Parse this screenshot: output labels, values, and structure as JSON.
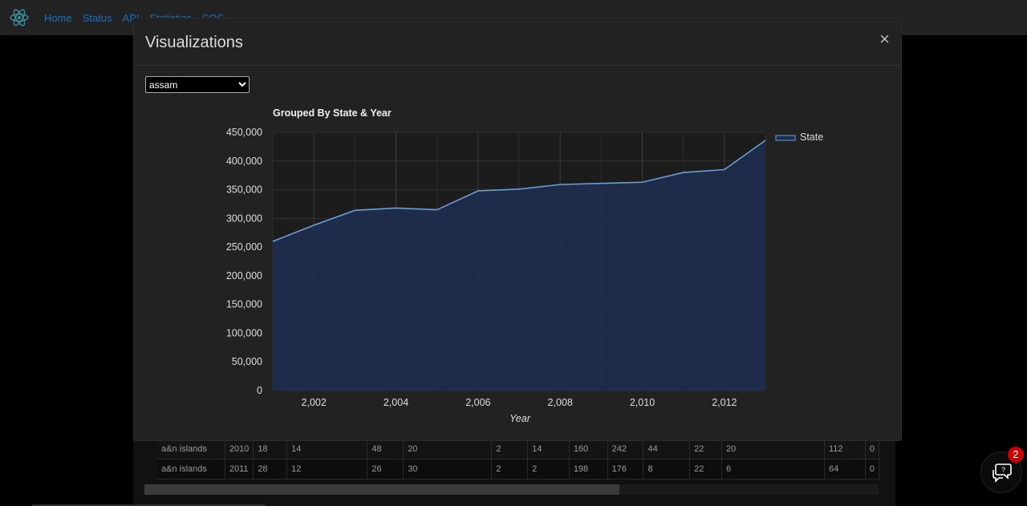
{
  "nav": {
    "links": [
      "Home",
      "Status",
      "API",
      "Statistics",
      "SOS"
    ]
  },
  "modal": {
    "title": "Visualizations",
    "close_label": "×",
    "select": {
      "value": "assam",
      "options": [
        "assam"
      ]
    }
  },
  "chart_data": {
    "type": "area",
    "title": "Grouped By State & Year",
    "xlabel": "Year",
    "ylabel": "",
    "x": [
      2001,
      2002,
      2003,
      2004,
      2005,
      2006,
      2007,
      2008,
      2009,
      2010,
      2011,
      2012,
      2013
    ],
    "series": [
      {
        "name": "State",
        "values": [
          260000,
          288000,
          314000,
          318000,
          315000,
          348000,
          351000,
          359000,
          361000,
          363000,
          380000,
          385000,
          436000
        ]
      }
    ],
    "xlim": [
      2001,
      2013
    ],
    "ylim": [
      0,
      450000
    ],
    "x_ticks": [
      "2,002",
      "2,004",
      "2,006",
      "2,008",
      "2,010",
      "2,012"
    ],
    "y_ticks": [
      "0",
      "50,000",
      "100,000",
      "150,000",
      "200,000",
      "250,000",
      "300,000",
      "350,000",
      "400,000",
      "450,000"
    ],
    "legend_position": "right",
    "grid": true,
    "colors": {
      "line": "#6a9fd6",
      "fill": "#1f2d4d"
    }
  },
  "background_table": {
    "rows": [
      [
        "a&n islands",
        "2010",
        "18",
        "14",
        "48",
        "20",
        "2",
        "14",
        "160",
        "242",
        "44",
        "22",
        "20",
        "112",
        "0"
      ],
      [
        "a&n islands",
        "2011",
        "28",
        "12",
        "26",
        "30",
        "2",
        "2",
        "198",
        "176",
        "8",
        "22",
        "6",
        "64",
        "0"
      ]
    ]
  },
  "chat": {
    "badge": "2"
  }
}
